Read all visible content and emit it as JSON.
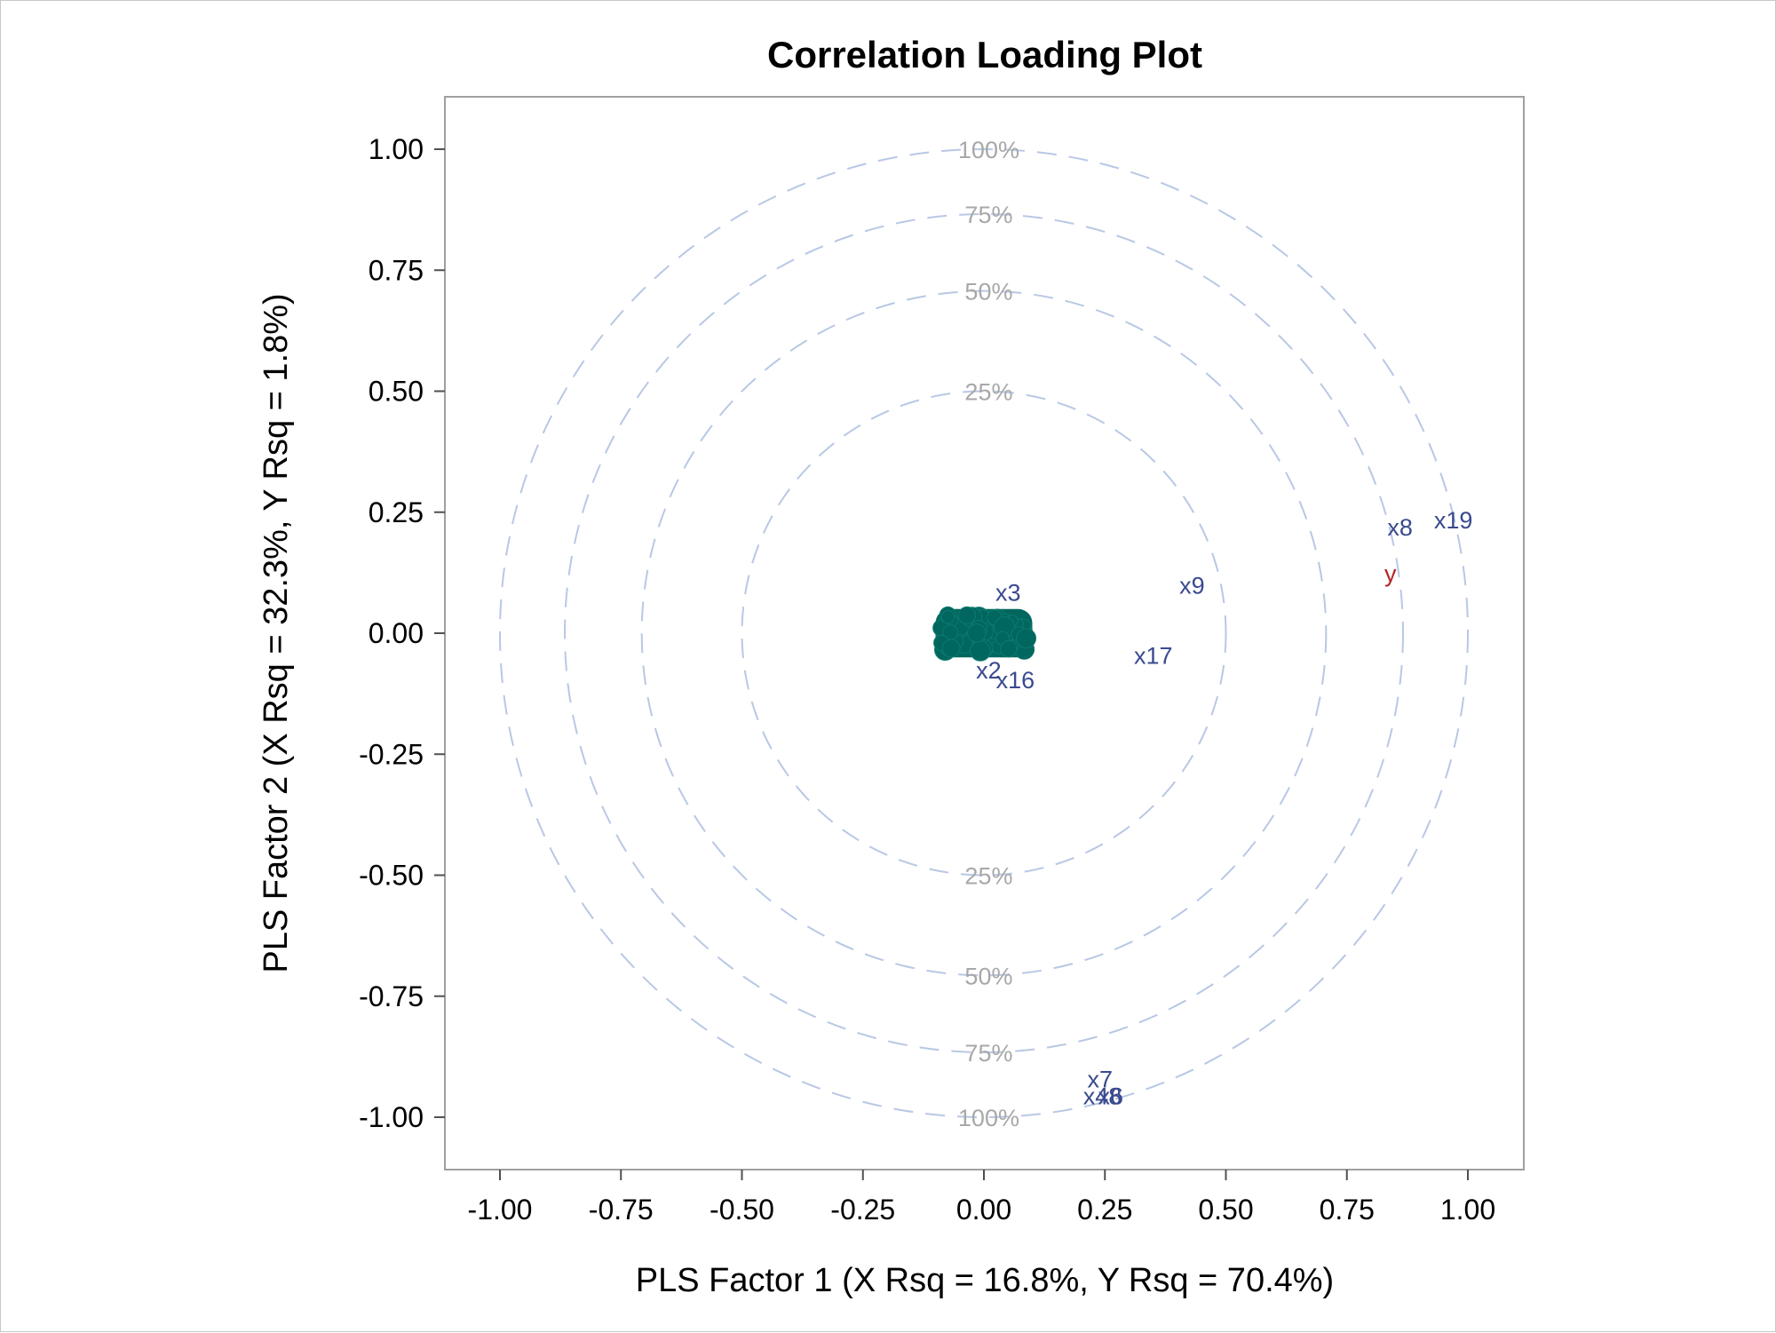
{
  "chart_data": {
    "type": "scatter",
    "title": "Correlation Loading Plot",
    "xlabel": "PLS Factor 1 (X Rsq = 16.8%, Y Rsq = 70.4%)",
    "ylabel": "PLS Factor 2 (X Rsq = 32.3%, Y Rsq = 1.8%)",
    "xlim": [
      -1.1,
      1.1
    ],
    "ylim": [
      -1.1,
      1.1
    ],
    "xticks": [
      "-1.00",
      "-0.75",
      "-0.50",
      "-0.25",
      "0.00",
      "0.25",
      "0.50",
      "0.75",
      "1.00"
    ],
    "yticks": [
      "1.00",
      "0.75",
      "0.50",
      "0.25",
      "0.00",
      "-0.25",
      "-0.50",
      "-0.75",
      "-1.00"
    ],
    "grid": false,
    "circles": [
      {
        "label": "100%",
        "radius": 1.0
      },
      {
        "label": "75%",
        "radius": 0.866
      },
      {
        "label": "50%",
        "radius": 0.707
      },
      {
        "label": "25%",
        "radius": 0.5
      }
    ],
    "cluster": {
      "x": [
        -0.1,
        0.1
      ],
      "y": [
        -0.05,
        0.05
      ],
      "color": "#00665e"
    },
    "x_loadings": [
      {
        "label": "x3",
        "x": 0.05,
        "y": 0.085
      },
      {
        "label": "x2",
        "x": 0.01,
        "y": -0.075
      },
      {
        "label": "x16",
        "x": 0.065,
        "y": -0.095
      },
      {
        "label": "x17",
        "x": 0.35,
        "y": -0.045
      },
      {
        "label": "x9",
        "x": 0.43,
        "y": 0.1
      },
      {
        "label": "x8",
        "x": 0.86,
        "y": 0.22
      },
      {
        "label": "x19",
        "x": 0.97,
        "y": 0.235
      },
      {
        "label": "x7",
        "x": 0.24,
        "y": -0.92
      },
      {
        "label": "x48",
        "x": 0.245,
        "y": -0.955
      },
      {
        "label": "x6",
        "x": 0.262,
        "y": -0.955
      }
    ],
    "y_loadings": [
      {
        "label": "y",
        "x": 0.84,
        "y": 0.125
      }
    ],
    "colors": {
      "x_label": "#3a4a8f",
      "y_label": "#b22222",
      "circle": "#b8c8e4",
      "frame": "#a0a0a0"
    }
  }
}
